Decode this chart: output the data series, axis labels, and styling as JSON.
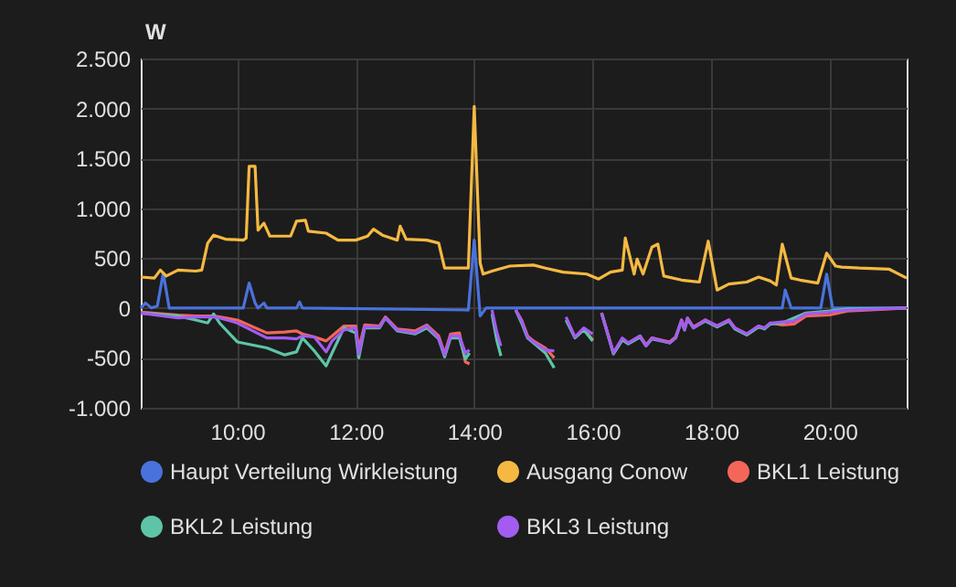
{
  "chart_data": {
    "type": "line",
    "ylabel": "W",
    "xlim": [
      8.37,
      21.3
    ],
    "xticks": [
      {
        "value": 10,
        "label": "10:00"
      },
      {
        "value": 12,
        "label": "12:00"
      },
      {
        "value": 14,
        "label": "14:00"
      },
      {
        "value": 16,
        "label": "16:00"
      },
      {
        "value": 18,
        "label": "18:00"
      },
      {
        "value": 20,
        "label": "20:00"
      }
    ],
    "ylim": [
      -1000,
      2500
    ],
    "yticks": [
      {
        "value": -1000,
        "label": "-1.000"
      },
      {
        "value": -500,
        "label": "-500"
      },
      0,
      {
        "value": 500,
        "label": "500"
      },
      {
        "value": 1000,
        "label": "1.000"
      },
      {
        "value": 1500,
        "label": "1.500"
      },
      {
        "value": 2000,
        "label": "2.000"
      },
      {
        "value": 2500,
        "label": "2.500"
      }
    ],
    "grid": true,
    "legend": "bottom",
    "marker": "none",
    "line_style": "solid",
    "x": [
      8.37,
      9.0,
      9.3,
      9.5,
      9.6,
      9.7,
      10.0,
      10.5,
      10.8,
      11.0,
      11.1,
      11.3,
      11.5,
      11.6,
      11.8,
      12.0,
      12.05,
      12.15,
      12.4,
      12.5,
      12.7,
      13.0,
      13.2,
      13.4,
      13.5,
      13.6,
      13.75,
      13.85,
      13.92,
      14.0,
      14.3,
      14.38,
      14.45,
      14.55,
      14.7,
      14.8,
      14.9,
      15.0,
      15.2,
      15.35,
      15.45,
      15.55,
      15.7,
      15.85,
      16.0,
      16.08,
      16.15,
      16.35,
      16.5,
      16.6,
      16.8,
      16.9,
      17.0,
      17.3,
      17.4,
      17.5,
      17.55,
      17.6,
      17.7,
      17.9,
      18.1,
      18.3,
      18.4,
      18.6,
      18.8,
      18.9,
      19.0,
      19.2,
      19.4,
      19.6,
      20.0,
      20.3,
      21.3
    ],
    "series": [
      {
        "name": "Haupt Verteilung Wirkleistung",
        "color": "#4a72dc",
        "x": [
          8.37,
          8.45,
          8.55,
          8.65,
          8.75,
          8.85,
          10.1,
          10.2,
          10.3,
          10.35,
          10.45,
          10.5,
          11.0,
          11.05,
          11.1,
          13.9,
          14.0,
          14.1,
          14.2,
          19.2,
          19.25,
          19.35,
          19.85,
          19.95,
          20.05,
          21.3
        ],
        "values": [
          0,
          50,
          0,
          20,
          350,
          0,
          0,
          250,
          50,
          0,
          50,
          0,
          0,
          60,
          0,
          -20,
          680,
          -80,
          0,
          0,
          180,
          0,
          0,
          340,
          0,
          0
        ]
      },
      {
        "name": "Ausgang Conow",
        "color": "#f5b942",
        "x": [
          8.37,
          8.6,
          8.7,
          8.8,
          9.0,
          9.3,
          9.4,
          9.5,
          9.6,
          9.8,
          10.1,
          10.15,
          10.2,
          10.3,
          10.35,
          10.45,
          10.55,
          10.9,
          11.0,
          11.15,
          11.2,
          11.5,
          11.7,
          12.0,
          12.2,
          12.3,
          12.45,
          12.6,
          12.7,
          12.75,
          12.85,
          13.2,
          13.4,
          13.5,
          13.9,
          14.0,
          14.1,
          14.15,
          14.3,
          14.6,
          15.0,
          15.2,
          15.5,
          15.9,
          16.1,
          16.3,
          16.5,
          16.55,
          16.7,
          16.75,
          16.85,
          17.0,
          17.1,
          17.2,
          17.5,
          17.8,
          17.95,
          18.1,
          18.3,
          18.6,
          18.8,
          19.0,
          19.1,
          19.2,
          19.35,
          19.5,
          19.8,
          19.95,
          20.1,
          20.2,
          20.5,
          21.0,
          21.3
        ],
        "values": [
          310,
          300,
          380,
          320,
          380,
          370,
          380,
          650,
          730,
          690,
          680,
          700,
          1420,
          1420,
          780,
          850,
          720,
          720,
          870,
          880,
          770,
          750,
          680,
          680,
          720,
          790,
          730,
          700,
          680,
          820,
          690,
          680,
          650,
          400,
          400,
          2020,
          450,
          340,
          370,
          420,
          430,
          400,
          360,
          340,
          290,
          360,
          380,
          700,
          340,
          490,
          340,
          610,
          640,
          320,
          280,
          260,
          670,
          180,
          240,
          260,
          310,
          270,
          230,
          640,
          300,
          280,
          250,
          550,
          420,
          410,
          400,
          390,
          300
        ]
      },
      {
        "name": "BKL1 Leistung",
        "color": "#f4665a",
        "values": [
          -40,
          -70,
          -80,
          -80,
          -80,
          -90,
          -120,
          -250,
          -240,
          -230,
          -260,
          -290,
          -330,
          -280,
          -180,
          -180,
          -410,
          -170,
          -180,
          -90,
          -210,
          -230,
          -170,
          -280,
          -460,
          -260,
          -250,
          -540,
          -560,
          null,
          null,
          null,
          null,
          null,
          -20,
          -120,
          -280,
          -330,
          -400,
          -500,
          null,
          null,
          null,
          -210,
          -320,
          null,
          -50,
          -450,
          -310,
          -350,
          -280,
          -370,
          -300,
          -340,
          -290,
          -120,
          -210,
          -100,
          -190,
          -120,
          -180,
          -120,
          -200,
          -260,
          -180,
          -200,
          -150,
          -170,
          -160,
          -80,
          -70,
          -30,
          0
        ]
      },
      {
        "name": "BKL2 Leistung",
        "color": "#5ec4a8",
        "values": [
          -50,
          -80,
          -120,
          -150,
          -60,
          -150,
          -340,
          -400,
          -470,
          -440,
          -300,
          -430,
          -580,
          -450,
          -200,
          -250,
          -500,
          -200,
          -200,
          -100,
          -230,
          -260,
          -200,
          -310,
          -490,
          -300,
          -300,
          -510,
          -450,
          null,
          -60,
          -320,
          -480,
          null,
          -20,
          -150,
          -300,
          -350,
          -450,
          -600,
          null,
          -120,
          -300,
          -220,
          -330,
          null,
          -50,
          -460,
          -320,
          -360,
          -290,
          -380,
          -310,
          -350,
          -300,
          -130,
          -220,
          -110,
          -200,
          -130,
          -190,
          -130,
          -210,
          -270,
          -190,
          -210,
          -160,
          -150,
          -100,
          -50,
          -30,
          -10,
          0
        ]
      },
      {
        "name": "BKL3 Leistung",
        "color": "#a35cf0",
        "values": [
          -50,
          -100,
          -90,
          -90,
          -90,
          -100,
          -150,
          -300,
          -300,
          -310,
          -280,
          -290,
          -440,
          -330,
          -220,
          -200,
          -460,
          -190,
          -190,
          -100,
          -220,
          -250,
          -180,
          -300,
          -470,
          -280,
          -280,
          -450,
          -420,
          null,
          -20,
          -240,
          -380,
          null,
          -20,
          -130,
          -290,
          -340,
          -420,
          -430,
          null,
          -90,
          -290,
          -200,
          -260,
          null,
          -50,
          -450,
          -300,
          -350,
          -280,
          -380,
          -300,
          -350,
          -300,
          -120,
          -220,
          -100,
          -200,
          -120,
          -180,
          -120,
          -200,
          -260,
          -180,
          -200,
          -150,
          -140,
          -130,
          -60,
          -40,
          -20,
          0
        ]
      }
    ]
  }
}
